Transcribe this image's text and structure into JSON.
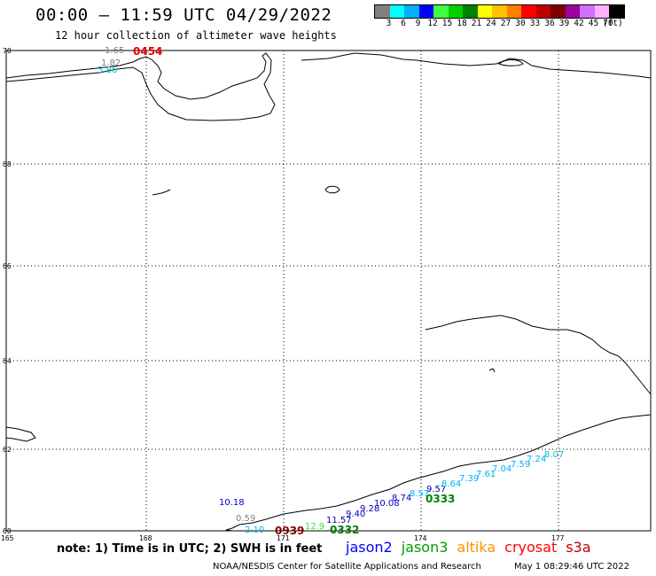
{
  "header": {
    "title": "00:00 – 11:59 UTC 04/29/2022",
    "subtitle": "12 hour collection of altimeter wave heights"
  },
  "legend": {
    "colors": [
      "#808080",
      "#00ffff",
      "#00b0ff",
      "#0000ff",
      "#40ff40",
      "#00d000",
      "#008000",
      "#ffff00",
      "#ffc000",
      "#ff8000",
      "#ff0000",
      "#c00000",
      "#800000",
      "#a000a0",
      "#d070ff",
      "#ffb0ff",
      "#000000"
    ],
    "labels": [
      "3",
      "6",
      "9",
      "12",
      "15",
      "18",
      "21",
      "24",
      "27",
      "30",
      "33",
      "36",
      "39",
      "42",
      "45",
      "70",
      "(ft)"
    ]
  },
  "map": {
    "lat_labels": [
      "70",
      "68",
      "66",
      "64",
      "62",
      "60"
    ],
    "lon_labels": [
      "165",
      "168",
      "171",
      "174",
      "177"
    ]
  },
  "observations": [
    {
      "text": "1.65",
      "color": "#808080"
    },
    {
      "text": "1.82",
      "color": "#808080"
    },
    {
      "text": "3.86",
      "color": "#00c0d0"
    },
    {
      "text": "10.18",
      "color": "#0000c0"
    },
    {
      "text": "0.59",
      "color": "#808080"
    },
    {
      "text": "2.10",
      "color": "#00b0ff"
    },
    {
      "text": "12.9",
      "color": "#40e040"
    },
    {
      "text": "11.57",
      "color": "#0000c0"
    },
    {
      "text": "9.40",
      "color": "#0000c0"
    },
    {
      "text": "9.28",
      "color": "#0000c0"
    },
    {
      "text": "10.08",
      "color": "#0000c0"
    },
    {
      "text": "8.74",
      "color": "#0000c0"
    },
    {
      "text": "8.57",
      "color": "#00b0ff"
    },
    {
      "text": "9.57",
      "color": "#0000c0"
    },
    {
      "text": "8.64",
      "color": "#00b0ff"
    },
    {
      "text": "7.39",
      "color": "#00b0ff"
    },
    {
      "text": "7.61",
      "color": "#00b0ff"
    },
    {
      "text": "7.04",
      "color": "#00b0ff"
    },
    {
      "text": "7.59",
      "color": "#00b0ff"
    },
    {
      "text": "7.24",
      "color": "#00b0ff"
    },
    {
      "text": "8.07",
      "color": "#00c0d0"
    }
  ],
  "passes": [
    {
      "text": "0454",
      "color": "#e00000"
    },
    {
      "text": "0333",
      "color": "#008000"
    },
    {
      "text": "0939",
      "color": "#800000"
    },
    {
      "text": "0332",
      "color": "#008000"
    }
  ],
  "note": "note: 1) Time is in UTC; 2) SWH is in feet",
  "satellites": [
    {
      "name": "jason2",
      "color": "#0000ff"
    },
    {
      "name": "jason3",
      "color": "#00a000"
    },
    {
      "name": "altika",
      "color": "#ff9000"
    },
    {
      "name": "cryosat",
      "color": "#ff0000"
    },
    {
      "name": "s3a",
      "color": "#c00000"
    }
  ],
  "footer": {
    "credit": "NOAA/NESDIS Center for Satellite Applications and Research",
    "timestamp": "May  1 08:29:46 UTC 2022"
  }
}
